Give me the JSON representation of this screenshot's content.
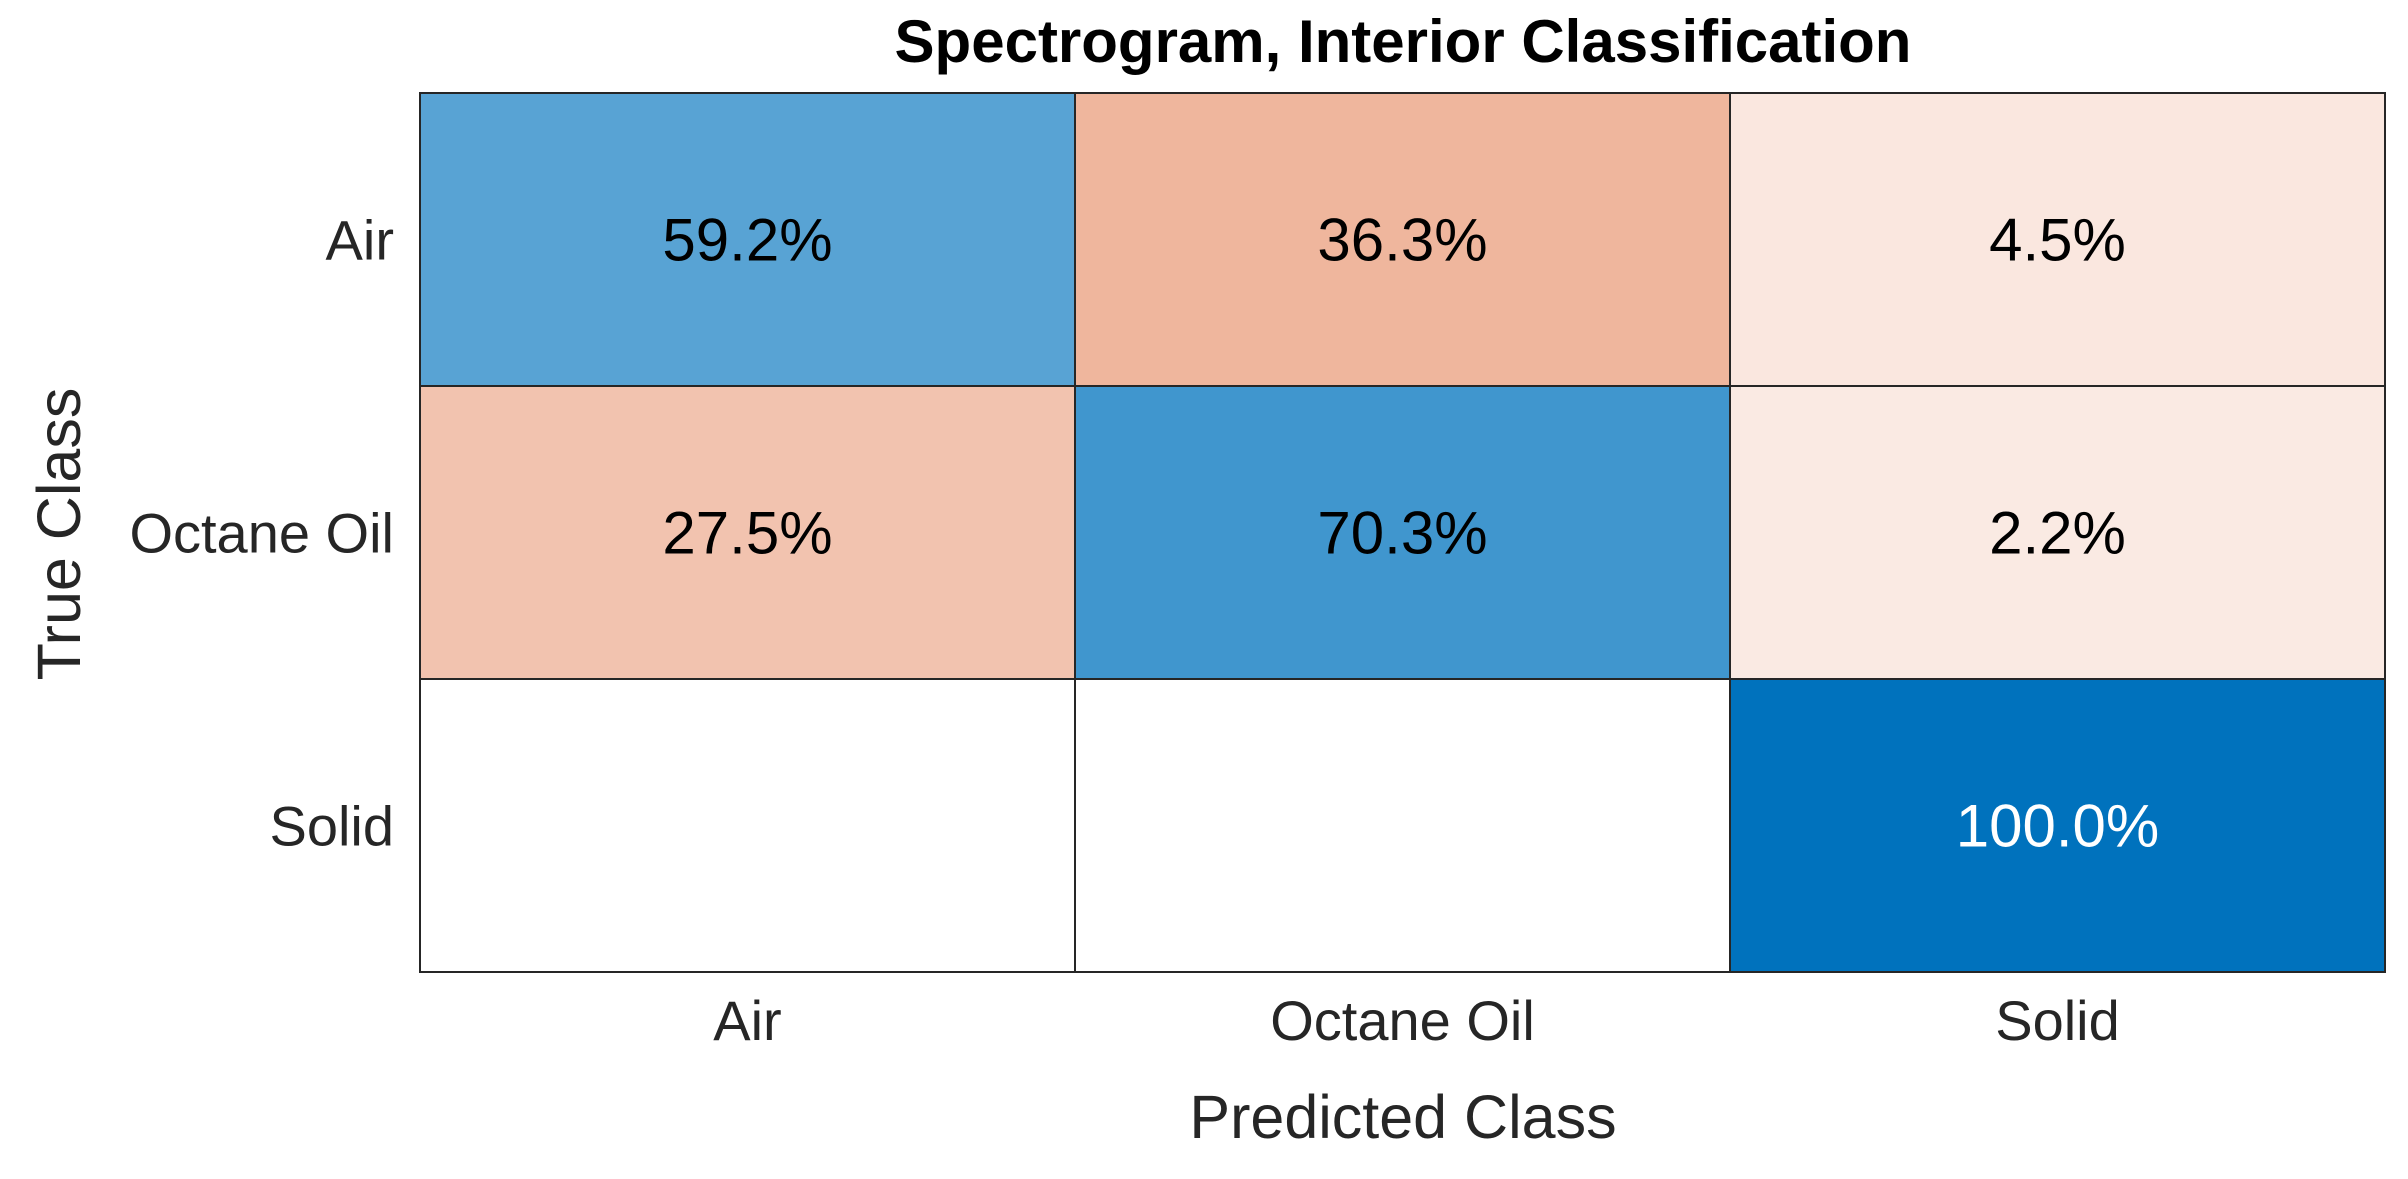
{
  "chart_data": {
    "type": "heatmap",
    "title": "Spectrogram, Interior Classification",
    "xlabel": "Predicted Class",
    "ylabel": "True Class",
    "x_categories": [
      "Air",
      "Octane Oil",
      "Solid"
    ],
    "y_categories": [
      "Air",
      "Octane Oil",
      "Solid"
    ],
    "values": [
      [
        59.2,
        36.3,
        4.5
      ],
      [
        27.5,
        70.3,
        2.2
      ],
      [
        0,
        0,
        100.0
      ]
    ],
    "labels": [
      [
        "59.2%",
        "36.3%",
        "4.5%"
      ],
      [
        "27.5%",
        "70.3%",
        "2.2%"
      ],
      [
        "",
        "",
        "100.0%"
      ]
    ],
    "colors": {
      "diagonal": "#0072bd",
      "off_diagonal": "#d95319",
      "empty": "#ffffff",
      "grid": "#262626"
    },
    "grid": true
  }
}
